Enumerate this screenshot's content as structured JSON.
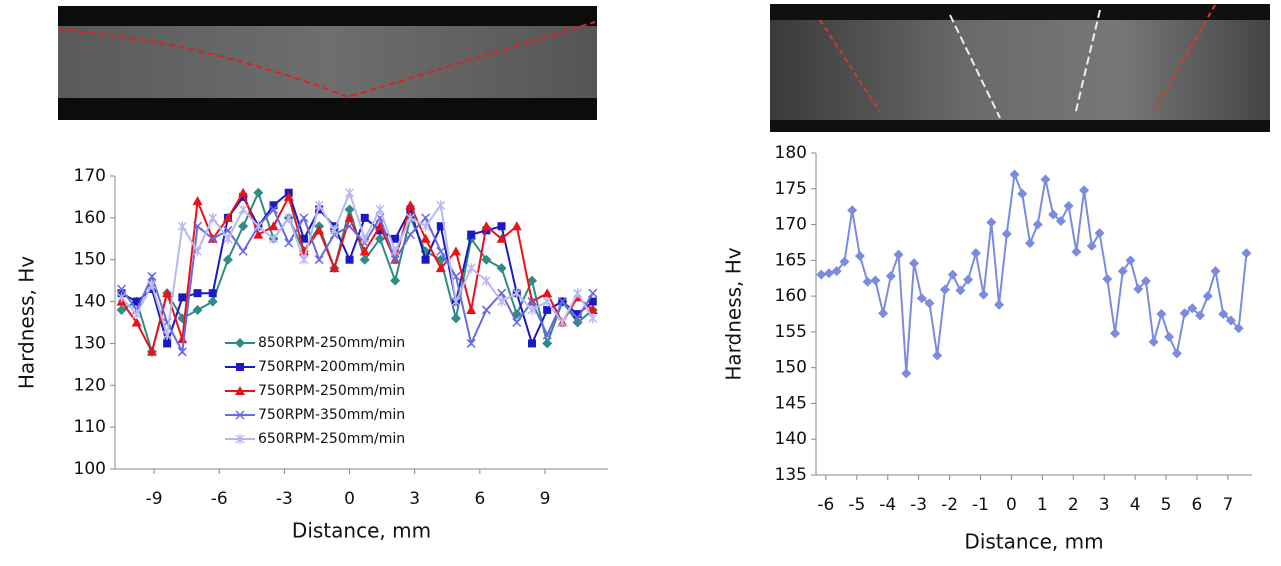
{
  "chart_data": [
    {
      "type": "line",
      "x_label": "Distance, mm",
      "y_label": "Hardness, Hv",
      "xlim": [
        -10.8,
        11.9
      ],
      "xticks": [
        -9,
        -6,
        -3,
        0,
        3,
        6,
        9
      ],
      "ylim": [
        100,
        170
      ],
      "yticks": [
        100,
        110,
        120,
        130,
        140,
        150,
        160,
        170
      ],
      "grid": false,
      "legend": "lower center",
      "x": [
        -10.5,
        -9.8,
        -9.1,
        -8.4,
        -7.7,
        -7.0,
        -6.3,
        -5.6,
        -4.9,
        -4.2,
        -3.5,
        -2.8,
        -2.1,
        -1.4,
        -0.7,
        0,
        0.7,
        1.4,
        2.1,
        2.8,
        3.5,
        4.2,
        4.9,
        5.6,
        6.3,
        7.0,
        7.7,
        8.4,
        9.1,
        9.8,
        10.5,
        11.2
      ],
      "series": [
        {
          "name": "850RPM-250mm/min",
          "color": "#2e8b86",
          "marker": "diamond",
          "values": [
            138,
            140,
            128,
            142,
            136,
            138,
            140,
            150,
            158,
            166,
            155,
            160,
            152,
            158,
            148,
            162,
            150,
            155,
            145,
            160,
            152,
            150,
            136,
            155,
            150,
            148,
            137,
            145,
            130,
            140,
            135,
            138
          ]
        },
        {
          "name": "750RPM-200mm/min",
          "color": "#1a1ac4",
          "marker": "square",
          "values": [
            142,
            140,
            143,
            130,
            141,
            142,
            142,
            160,
            165,
            158,
            163,
            166,
            155,
            162,
            158,
            150,
            160,
            157,
            155,
            162,
            150,
            158,
            140,
            156,
            157,
            158,
            142,
            130,
            138,
            140,
            137,
            140
          ]
        },
        {
          "name": "750RPM-250mm/min",
          "color": "#e8121b",
          "marker": "triangle",
          "values": [
            140,
            135,
            128,
            142,
            131,
            164,
            155,
            160,
            166,
            156,
            158,
            165,
            152,
            157,
            148,
            160,
            152,
            158,
            150,
            163,
            155,
            148,
            152,
            138,
            158,
            155,
            158,
            140,
            142,
            135,
            141,
            138
          ]
        },
        {
          "name": "750RPM-350mm/min",
          "color": "#6a6ae0",
          "marker": "x",
          "values": [
            143,
            138,
            146,
            135,
            128,
            158,
            155,
            157,
            152,
            158,
            162,
            154,
            160,
            150,
            156,
            158,
            154,
            160,
            150,
            156,
            160,
            152,
            146,
            130,
            138,
            142,
            135,
            140,
            132,
            140,
            136,
            142
          ]
        },
        {
          "name": "650RPM-250mm/min",
          "color": "#b9b9f2",
          "marker": "star",
          "values": [
            141,
            137,
            144,
            132,
            158,
            152,
            160,
            155,
            162,
            158,
            155,
            160,
            150,
            163,
            157,
            166,
            155,
            162,
            152,
            160,
            158,
            163,
            140,
            148,
            145,
            140,
            142,
            138,
            140,
            135,
            142,
            136
          ]
        }
      ]
    },
    {
      "type": "line",
      "x_label": "Distance, mm",
      "y_label": "Hardness, Hv",
      "xlim": [
        -6.32,
        7.78
      ],
      "xticks": [
        -6,
        -5,
        -4,
        -3,
        -2,
        -1,
        0,
        1,
        2,
        3,
        4,
        5,
        6,
        7
      ],
      "ylim": [
        135,
        180
      ],
      "yticks": [
        135,
        140,
        145,
        150,
        155,
        160,
        165,
        170,
        175,
        180
      ],
      "grid": false,
      "x": [
        -6.15,
        -5.9,
        -5.65,
        -5.4,
        -5.15,
        -4.9,
        -4.65,
        -4.4,
        -4.15,
        -3.9,
        -3.65,
        -3.4,
        -3.15,
        -2.9,
        -2.65,
        -2.4,
        -2.15,
        -1.9,
        -1.65,
        -1.4,
        -1.15,
        -0.9,
        -0.65,
        -0.4,
        -0.15,
        0.1,
        0.35,
        0.6,
        0.85,
        1.1,
        1.35,
        1.6,
        1.85,
        2.1,
        2.35,
        2.6,
        2.85,
        3.1,
        3.35,
        3.6,
        3.85,
        4.1,
        4.35,
        4.6,
        4.85,
        5.1,
        5.35,
        5.6,
        5.85,
        6.1,
        6.35,
        6.6,
        6.85,
        7.1,
        7.35,
        7.6
      ],
      "series": [
        {
          "color": "#7b8be0",
          "marker": "diamond",
          "values": [
            163,
            163.2,
            163.5,
            164.8,
            172,
            165.6,
            162,
            162.2,
            157.6,
            162.8,
            165.8,
            149.2,
            164.6,
            159.7,
            159,
            151.7,
            160.9,
            163,
            160.8,
            162.3,
            166,
            160.2,
            170.3,
            158.8,
            168.7,
            177,
            174.3,
            167.4,
            170,
            176.3,
            171.4,
            170.5,
            172.6,
            166.2,
            174.8,
            167,
            168.8,
            162.4,
            154.8,
            163.5,
            165,
            161,
            162.1,
            153.6,
            157.5,
            154.3,
            152,
            157.6,
            158.3,
            157.3,
            160,
            163.5,
            157.5,
            156.6,
            155.5,
            166
          ]
        }
      ]
    }
  ]
}
